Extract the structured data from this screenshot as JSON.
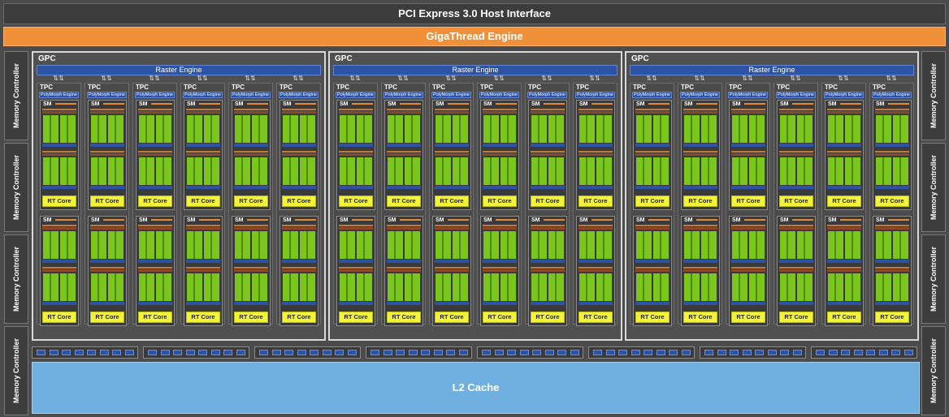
{
  "pci_label": "PCI Express 3.0 Host Interface",
  "gigathread_label": "GigaThread Engine",
  "memory_controller_label": "Memory Controller",
  "memory_controllers_left": 4,
  "memory_controllers_right": 4,
  "l2_label": "L2 Cache",
  "gpc_label": "GPC",
  "raster_label": "Raster Engine",
  "tpc_label": "TPC",
  "polymorph_label": "PolyMorph Engine",
  "sm_label": "SM",
  "rt_core_label": "RT Core",
  "gpc_count": 3,
  "tpcs_per_gpc": 6,
  "sms_per_tpc": 2,
  "crossbar_segments": 8,
  "colors": {
    "gigathread": "#f0913a",
    "raster": "#2d53a6",
    "l2": "#6fb0e0",
    "rt_core": "#f3f33a",
    "core_green": "#7bc61c"
  }
}
